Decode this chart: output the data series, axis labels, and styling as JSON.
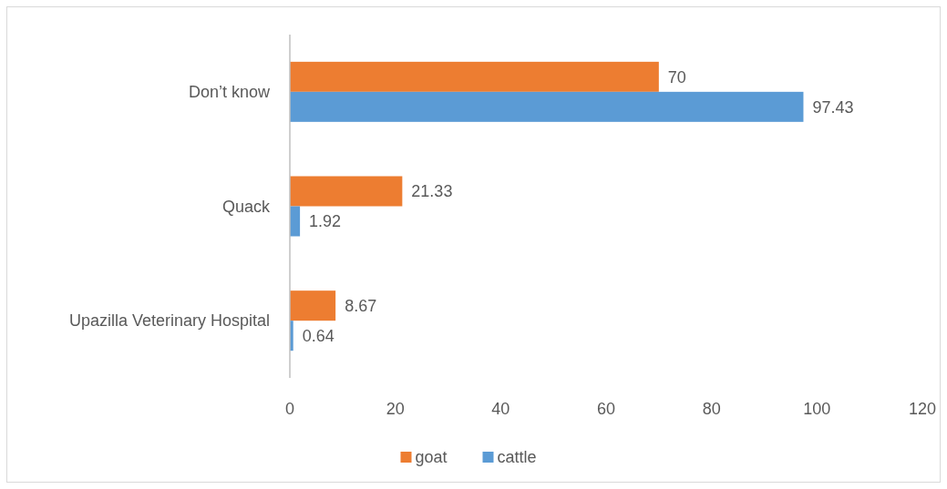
{
  "chart_data": {
    "type": "bar",
    "orientation": "horizontal",
    "categories": [
      "Don’t know",
      "Quack",
      "Upazilla Veterinary Hospital"
    ],
    "series": [
      {
        "name": "goat",
        "color": "#ed7d31",
        "values": [
          70,
          21.33,
          8.67
        ]
      },
      {
        "name": "cattle",
        "color": "#5b9bd5",
        "values": [
          97.43,
          1.92,
          0.64
        ]
      }
    ],
    "xlim": [
      0,
      120
    ],
    "xticks": [
      0,
      20,
      40,
      60,
      80,
      100,
      120
    ],
    "data_labels": true,
    "legend": "bottom",
    "grid": false
  }
}
